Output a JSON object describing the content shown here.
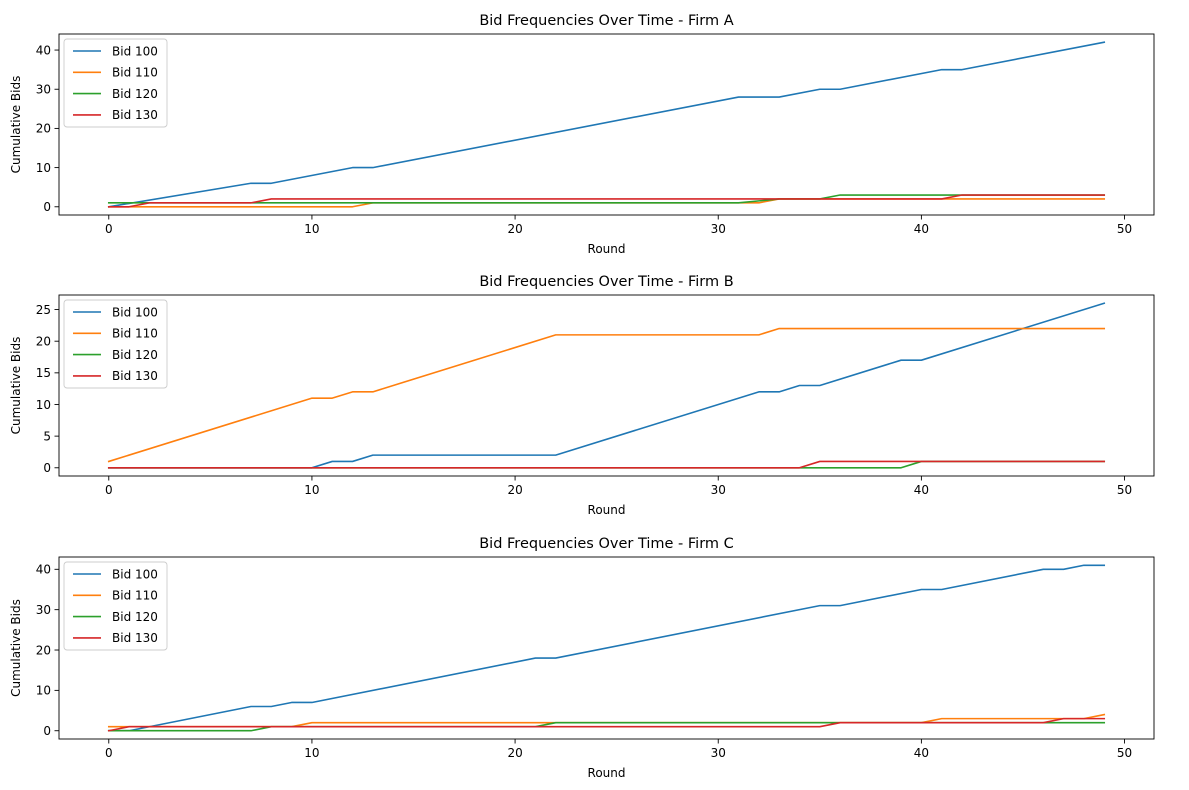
{
  "colors": {
    "bid100": "#1f77b4",
    "bid110": "#ff7f0e",
    "bid120": "#2ca02c",
    "bid130": "#d62728"
  },
  "chart_data": [
    {
      "type": "line",
      "title": "Bid Frequencies Over Time - Firm A",
      "xlabel": "Round",
      "ylabel": "Cumulative Bids",
      "xlim": [
        -2.45,
        51.45
      ],
      "ylim": [
        -2.1,
        44.1
      ],
      "xticks": [
        0,
        10,
        20,
        30,
        40,
        50
      ],
      "yticks": [
        0,
        10,
        20,
        30,
        40
      ],
      "grid": false,
      "legend": "upper-left",
      "series": [
        {
          "name": "Bid 100",
          "color": "#1f77b4",
          "points": [
            [
              0,
              0
            ],
            [
              7,
              6
            ],
            [
              8,
              6
            ],
            [
              12,
              10
            ],
            [
              13,
              10
            ],
            [
              31,
              28
            ],
            [
              33,
              28
            ],
            [
              35,
              30
            ],
            [
              36,
              30
            ],
            [
              41,
              35
            ],
            [
              42,
              35
            ],
            [
              49,
              42
            ]
          ]
        },
        {
          "name": "Bid 110",
          "color": "#ff7f0e",
          "points": [
            [
              0,
              0
            ],
            [
              12,
              0
            ],
            [
              13,
              1
            ],
            [
              32,
              1
            ],
            [
              33,
              2
            ],
            [
              49,
              2
            ]
          ]
        },
        {
          "name": "Bid 120",
          "color": "#2ca02c",
          "points": [
            [
              0,
              1
            ],
            [
              1,
              1
            ],
            [
              2,
              1
            ],
            [
              13,
              1
            ],
            [
              31,
              1
            ],
            [
              33,
              2
            ],
            [
              35,
              2
            ],
            [
              36,
              3
            ],
            [
              41,
              3
            ],
            [
              42,
              3
            ],
            [
              49,
              3
            ]
          ]
        },
        {
          "name": "Bid 130",
          "color": "#d62728",
          "points": [
            [
              0,
              0
            ],
            [
              1,
              0
            ],
            [
              2,
              1
            ],
            [
              7,
              1
            ],
            [
              8,
              2
            ],
            [
              31,
              2
            ],
            [
              41,
              2
            ],
            [
              42,
              3
            ],
            [
              49,
              3
            ]
          ]
        }
      ]
    },
    {
      "type": "line",
      "title": "Bid Frequencies Over Time - Firm B",
      "xlabel": "Round",
      "ylabel": "Cumulative Bids",
      "xlim": [
        -2.45,
        51.45
      ],
      "ylim": [
        -1.3,
        27.3
      ],
      "xticks": [
        0,
        10,
        20,
        30,
        40,
        50
      ],
      "yticks": [
        0,
        5,
        10,
        15,
        20,
        25
      ],
      "grid": false,
      "legend": "upper-left",
      "series": [
        {
          "name": "Bid 100",
          "color": "#1f77b4",
          "points": [
            [
              0,
              0
            ],
            [
              10,
              0
            ],
            [
              11,
              1
            ],
            [
              12,
              1
            ],
            [
              13,
              2
            ],
            [
              22,
              2
            ],
            [
              32,
              12
            ],
            [
              33,
              12
            ],
            [
              34,
              13
            ],
            [
              35,
              13
            ],
            [
              39,
              17
            ],
            [
              40,
              17
            ],
            [
              49,
              26
            ]
          ]
        },
        {
          "name": "Bid 110",
          "color": "#ff7f0e",
          "points": [
            [
              0,
              1
            ],
            [
              10,
              11
            ],
            [
              11,
              11
            ],
            [
              12,
              12
            ],
            [
              13,
              12
            ],
            [
              22,
              21
            ],
            [
              32,
              21
            ],
            [
              33,
              22
            ],
            [
              49,
              22
            ]
          ]
        },
        {
          "name": "Bid 120",
          "color": "#2ca02c",
          "points": [
            [
              0,
              0
            ],
            [
              35,
              0
            ],
            [
              39,
              0
            ],
            [
              40,
              1
            ],
            [
              49,
              1
            ]
          ]
        },
        {
          "name": "Bid 130",
          "color": "#d62728",
          "points": [
            [
              0,
              0
            ],
            [
              34,
              0
            ],
            [
              35,
              1
            ],
            [
              49,
              1
            ]
          ]
        }
      ]
    },
    {
      "type": "line",
      "title": "Bid Frequencies Over Time - Firm C",
      "xlabel": "Round",
      "ylabel": "Cumulative Bids",
      "xlim": [
        -2.45,
        51.45
      ],
      "ylim": [
        -2.05,
        43.05
      ],
      "xticks": [
        0,
        10,
        20,
        30,
        40,
        50
      ],
      "yticks": [
        0,
        10,
        20,
        30,
        40
      ],
      "grid": false,
      "legend": "upper-left",
      "series": [
        {
          "name": "Bid 100",
          "color": "#1f77b4",
          "points": [
            [
              0,
              0
            ],
            [
              1,
              0
            ],
            [
              7,
              6
            ],
            [
              8,
              6
            ],
            [
              9,
              7
            ],
            [
              10,
              7
            ],
            [
              21,
              18
            ],
            [
              22,
              18
            ],
            [
              35,
              31
            ],
            [
              36,
              31
            ],
            [
              40,
              35
            ],
            [
              41,
              35
            ],
            [
              46,
              40
            ],
            [
              47,
              40
            ],
            [
              48,
              41
            ],
            [
              49,
              41
            ]
          ]
        },
        {
          "name": "Bid 110",
          "color": "#ff7f0e",
          "points": [
            [
              0,
              1
            ],
            [
              9,
              1
            ],
            [
              10,
              2
            ],
            [
              21,
              2
            ],
            [
              35,
              2
            ],
            [
              40,
              2
            ],
            [
              41,
              3
            ],
            [
              48,
              3
            ],
            [
              49,
              4
            ]
          ]
        },
        {
          "name": "Bid 120",
          "color": "#2ca02c",
          "points": [
            [
              0,
              0
            ],
            [
              7,
              0
            ],
            [
              8,
              1
            ],
            [
              21,
              1
            ],
            [
              22,
              2
            ],
            [
              49,
              2
            ]
          ]
        },
        {
          "name": "Bid 130",
          "color": "#d62728",
          "points": [
            [
              0,
              0
            ],
            [
              1,
              1
            ],
            [
              35,
              1
            ],
            [
              36,
              2
            ],
            [
              46,
              2
            ],
            [
              47,
              3
            ],
            [
              49,
              3
            ]
          ]
        }
      ]
    }
  ]
}
